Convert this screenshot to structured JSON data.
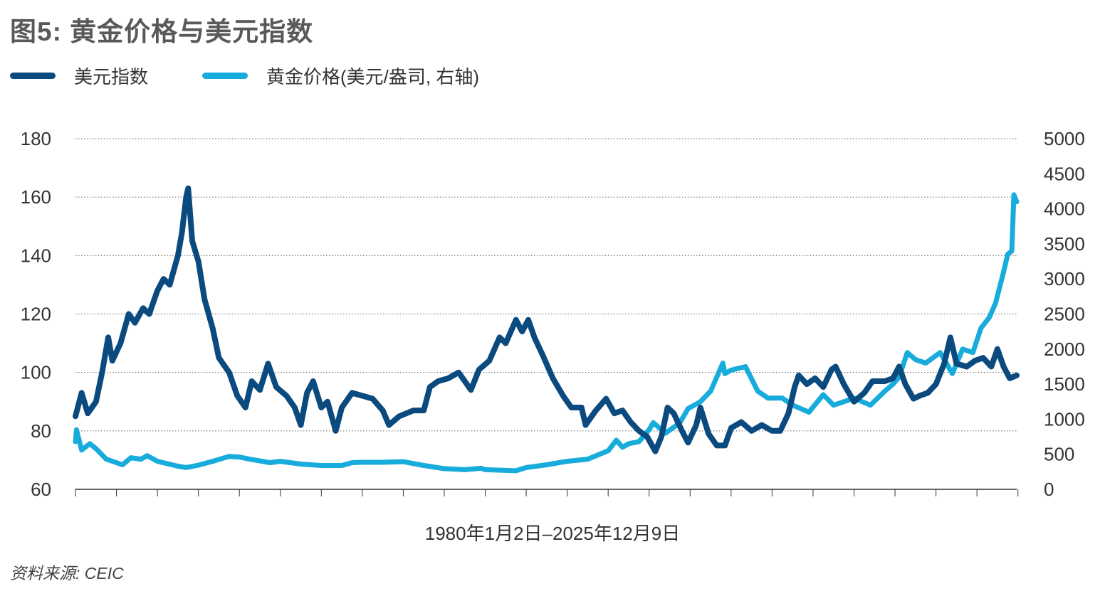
{
  "chart_data": {
    "type": "line",
    "title": "图5: 黄金价格与美元指数",
    "xlabel": "1980年1月2日–2025年12月9日",
    "source": "资料来源: CEIC",
    "xlim": [
      1980.0,
      2025.94
    ],
    "y_left": {
      "ticks": [
        "60",
        "80",
        "100",
        "120",
        "140",
        "160",
        "180"
      ],
      "range": [
        60,
        180
      ]
    },
    "y_right": {
      "ticks": [
        "0",
        "500",
        "1000",
        "1500",
        "2000",
        "2500",
        "3000",
        "3500",
        "4000",
        "4500",
        "5000"
      ],
      "range": [
        0,
        5000
      ]
    },
    "grid": true,
    "legend_placement": "top-left",
    "series": [
      {
        "name": "美元指数",
        "axis": "left",
        "color": "#0b4a7e",
        "x": [
          1980.0,
          1980.3,
          1980.6,
          1981.0,
          1981.3,
          1981.6,
          1981.8,
          1982.2,
          1982.6,
          1982.9,
          1983.3,
          1983.6,
          1984.0,
          1984.3,
          1984.6,
          1985.0,
          1985.2,
          1985.4,
          1985.5,
          1985.7,
          1986.0,
          1986.3,
          1986.7,
          1987.0,
          1987.5,
          1987.9,
          1988.3,
          1988.6,
          1989.0,
          1989.4,
          1989.8,
          1990.3,
          1990.7,
          1991.0,
          1991.3,
          1991.6,
          1992.0,
          1992.3,
          1992.7,
          1993.0,
          1993.5,
          1994.0,
          1994.5,
          1995.0,
          1995.3,
          1995.8,
          1996.5,
          1997.0,
          1997.3,
          1997.7,
          1998.2,
          1998.7,
          1999.0,
          1999.3,
          1999.7,
          2000.2,
          2000.7,
          2001.0,
          2001.5,
          2001.8,
          2002.1,
          2002.4,
          2002.8,
          2003.3,
          2003.8,
          2004.2,
          2004.7,
          2004.9,
          2005.4,
          2005.9,
          2006.3,
          2006.7,
          2007.1,
          2007.5,
          2007.9,
          2008.3,
          2008.6,
          2008.9,
          2009.2,
          2009.6,
          2009.9,
          2010.3,
          2010.5,
          2010.9,
          2011.3,
          2011.7,
          2012.0,
          2012.5,
          2013.0,
          2013.5,
          2014.0,
          2014.4,
          2014.8,
          2015.1,
          2015.3,
          2015.7,
          2016.1,
          2016.5,
          2016.9,
          2017.1,
          2017.5,
          2018.0,
          2018.5,
          2018.9,
          2019.5,
          2019.9,
          2020.2,
          2020.5,
          2020.9,
          2021.2,
          2021.6,
          2022.0,
          2022.4,
          2022.7,
          2023.0,
          2023.5,
          2023.9,
          2024.3,
          2024.7,
          2025.0,
          2025.3,
          2025.6,
          2025.94
        ],
        "values": [
          85,
          93,
          86,
          90,
          100,
          112,
          104,
          110,
          120,
          117,
          122,
          120,
          128,
          132,
          130,
          140,
          148,
          160,
          163,
          145,
          138,
          125,
          115,
          105,
          100,
          92,
          88,
          97,
          94,
          103,
          95,
          92,
          88,
          82,
          93,
          97,
          88,
          90,
          80,
          88,
          93,
          92,
          91,
          87,
          82,
          85,
          87,
          87,
          95,
          97,
          98,
          100,
          97,
          94,
          101,
          104,
          112,
          110,
          118,
          114,
          118,
          112,
          106,
          98,
          92,
          88,
          88,
          82,
          87,
          91,
          86,
          87,
          83,
          80,
          78,
          73,
          78,
          88,
          86,
          80,
          76,
          82,
          88,
          79,
          75,
          75,
          81,
          83,
          80,
          82,
          80,
          80,
          86,
          95,
          99,
          96,
          98,
          95,
          101,
          102,
          96,
          90,
          93,
          97,
          97,
          98,
          102,
          96,
          91,
          92,
          93,
          96,
          103,
          112,
          103,
          102,
          104,
          105,
          102,
          108,
          102,
          98,
          99
        ]
      },
      {
        "name": "黄金价格(美元/盎司, 右轴)",
        "axis": "right",
        "color": "#18acdc",
        "x": [
          1980.0,
          1980.05,
          1980.3,
          1980.7,
          1981.0,
          1981.5,
          1982.3,
          1982.7,
          1983.2,
          1983.5,
          1984.0,
          1985.0,
          1985.4,
          1986.0,
          1986.7,
          1987.5,
          1988.0,
          1988.5,
          1989.5,
          1990.0,
          1991.0,
          1992.0,
          1993.0,
          1993.5,
          1994.0,
          1995.0,
          1996.0,
          1997.0,
          1998.0,
          1999.0,
          1999.8,
          2000.0,
          2001.0,
          2001.5,
          2002.0,
          2003.0,
          2004.0,
          2005.0,
          2006.0,
          2006.4,
          2006.7,
          2007.0,
          2007.5,
          2008.0,
          2008.2,
          2008.8,
          2009.5,
          2009.9,
          2010.5,
          2011.0,
          2011.6,
          2011.7,
          2012.0,
          2012.7,
          2013.3,
          2013.8,
          2014.5,
          2015.0,
          2015.8,
          2016.5,
          2017.0,
          2017.5,
          2018.0,
          2018.8,
          2019.5,
          2019.9,
          2020.2,
          2020.6,
          2021.0,
          2021.5,
          2022.2,
          2022.8,
          2023.3,
          2023.8,
          2024.2,
          2024.6,
          2024.9,
          2025.3,
          2025.5,
          2025.7,
          2025.8,
          2025.94
        ],
        "values": [
          680,
          850,
          560,
          650,
          580,
          430,
          350,
          450,
          430,
          480,
          400,
          330,
          310,
          345,
          400,
          470,
          460,
          430,
          380,
          400,
          360,
          340,
          340,
          380,
          385,
          385,
          395,
          340,
          295,
          280,
          300,
          280,
          270,
          265,
          310,
          350,
          400,
          430,
          550,
          700,
          600,
          650,
          680,
          850,
          950,
          800,
          950,
          1150,
          1250,
          1400,
          1800,
          1650,
          1700,
          1750,
          1400,
          1300,
          1300,
          1200,
          1100,
          1350,
          1200,
          1250,
          1300,
          1200,
          1400,
          1500,
          1600,
          1950,
          1850,
          1800,
          1950,
          1650,
          2000,
          1950,
          2300,
          2450,
          2650,
          3100,
          3350,
          3400,
          4200,
          4100
        ]
      }
    ]
  }
}
